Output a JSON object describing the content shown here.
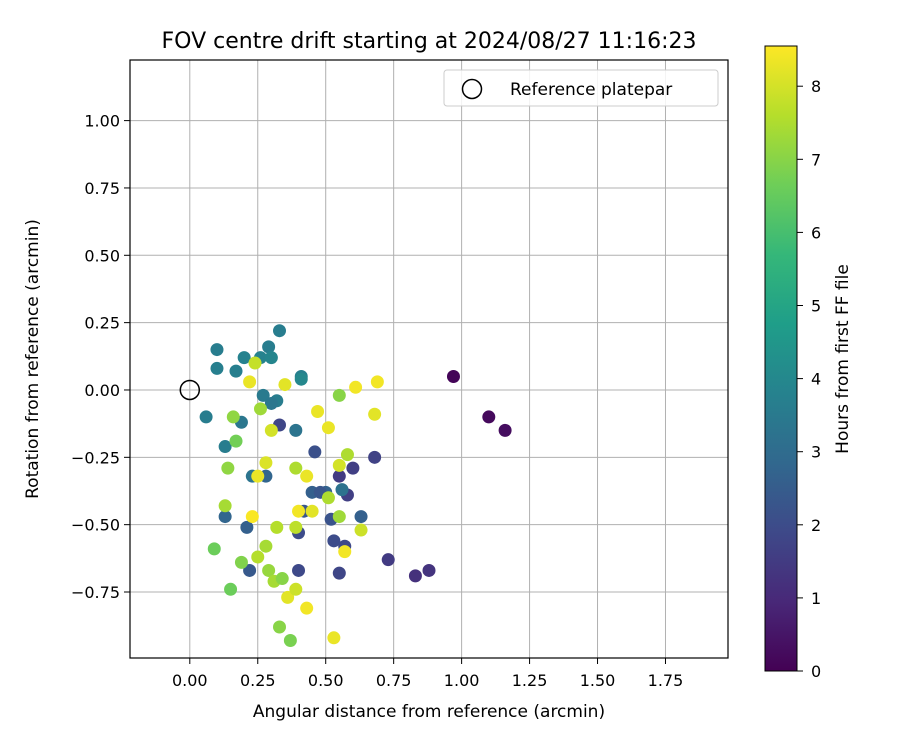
{
  "chart_data": {
    "type": "scatter",
    "title": "FOV centre drift starting at 2024/08/27 11:16:23",
    "xlabel": "Angular distance from reference (arcmin)",
    "ylabel": "Rotation from reference (arcmin)",
    "xlim": [
      -0.22,
      1.98
    ],
    "ylim": [
      -0.995,
      1.225
    ],
    "xticks": [
      0.0,
      0.25,
      0.5,
      0.75,
      1.0,
      1.25,
      1.5,
      1.75
    ],
    "xtick_labels": [
      "0.00",
      "0.25",
      "0.50",
      "0.75",
      "1.00",
      "1.25",
      "1.50",
      "1.75"
    ],
    "yticks": [
      -0.75,
      -0.5,
      -0.25,
      0.0,
      0.25,
      0.5,
      0.75,
      1.0
    ],
    "ytick_labels": [
      "−0.75",
      "−0.50",
      "−0.25",
      "0.00",
      "0.25",
      "0.50",
      "0.75",
      "1.00"
    ],
    "grid": true,
    "legend": {
      "position": "top-right",
      "entries": [
        "Reference platepar"
      ]
    },
    "reference_point": {
      "x": 0.0,
      "y": 0.0
    },
    "colorbar": {
      "label": "Hours from first FF file",
      "colormap": "viridis",
      "range": [
        0,
        8.55
      ],
      "ticks": [
        0,
        1,
        2,
        3,
        4,
        5,
        6,
        7,
        8
      ],
      "tick_labels": [
        "0",
        "1",
        "2",
        "3",
        "4",
        "5",
        "6",
        "7",
        "8"
      ],
      "colormap_stops": [
        "#440154",
        "#482878",
        "#3e4989",
        "#31688e",
        "#26828e",
        "#1f9e89",
        "#35b779",
        "#6ece58",
        "#b5de2b",
        "#fde725"
      ]
    },
    "points": [
      {
        "x": 0.97,
        "y": 0.05,
        "hours": 0.1
      },
      {
        "x": 1.1,
        "y": -0.1,
        "hours": 0.2
      },
      {
        "x": 1.16,
        "y": -0.15,
        "hours": 0.3
      },
      {
        "x": 0.88,
        "y": -0.67,
        "hours": 1.3
      },
      {
        "x": 0.83,
        "y": -0.69,
        "hours": 1.2
      },
      {
        "x": 0.73,
        "y": -0.63,
        "hours": 1.5
      },
      {
        "x": 0.68,
        "y": -0.25,
        "hours": 1.7
      },
      {
        "x": 0.6,
        "y": -0.29,
        "hours": 1.6
      },
      {
        "x": 0.58,
        "y": -0.39,
        "hours": 1.6
      },
      {
        "x": 0.55,
        "y": -0.32,
        "hours": 1.5
      },
      {
        "x": 0.55,
        "y": -0.68,
        "hours": 1.8
      },
      {
        "x": 0.57,
        "y": -0.58,
        "hours": 1.9
      },
      {
        "x": 0.53,
        "y": -0.56,
        "hours": 2.0
      },
      {
        "x": 0.52,
        "y": -0.48,
        "hours": 2.2
      },
      {
        "x": 0.4,
        "y": -0.67,
        "hours": 1.9
      },
      {
        "x": 0.4,
        "y": -0.53,
        "hours": 2.0
      },
      {
        "x": 0.42,
        "y": -0.45,
        "hours": 2.3
      },
      {
        "x": 0.46,
        "y": -0.23,
        "hours": 2.1
      },
      {
        "x": 0.45,
        "y": -0.38,
        "hours": 2.6
      },
      {
        "x": 0.5,
        "y": -0.38,
        "hours": 2.7
      },
      {
        "x": 0.48,
        "y": -0.38,
        "hours": 2.3
      },
      {
        "x": 0.56,
        "y": -0.37,
        "hours": 3.2
      },
      {
        "x": 0.63,
        "y": -0.47,
        "hours": 2.6
      },
      {
        "x": 0.33,
        "y": -0.13,
        "hours": 1.8
      },
      {
        "x": 0.22,
        "y": -0.67,
        "hours": 2.4
      },
      {
        "x": 0.21,
        "y": -0.51,
        "hours": 2.6
      },
      {
        "x": 0.13,
        "y": -0.47,
        "hours": 2.8
      },
      {
        "x": 0.23,
        "y": -0.32,
        "hours": 3.3
      },
      {
        "x": 0.28,
        "y": -0.32,
        "hours": 2.8
      },
      {
        "x": 0.13,
        "y": -0.21,
        "hours": 3.6
      },
      {
        "x": 0.19,
        "y": -0.12,
        "hours": 3.4
      },
      {
        "x": 0.06,
        "y": -0.1,
        "hours": 3.6
      },
      {
        "x": 0.27,
        "y": -0.02,
        "hours": 3.5
      },
      {
        "x": 0.32,
        "y": -0.04,
        "hours": 3.6
      },
      {
        "x": 0.3,
        "y": -0.05,
        "hours": 3.4
      },
      {
        "x": 0.39,
        "y": -0.15,
        "hours": 3.3
      },
      {
        "x": 0.41,
        "y": 0.05,
        "hours": 3.7
      },
      {
        "x": 0.41,
        "y": 0.04,
        "hours": 4.0
      },
      {
        "x": 0.1,
        "y": 0.08,
        "hours": 3.7
      },
      {
        "x": 0.17,
        "y": 0.07,
        "hours": 3.7
      },
      {
        "x": 0.2,
        "y": 0.12,
        "hours": 3.8
      },
      {
        "x": 0.1,
        "y": 0.15,
        "hours": 3.6
      },
      {
        "x": 0.26,
        "y": 0.12,
        "hours": 3.8
      },
      {
        "x": 0.29,
        "y": 0.16,
        "hours": 3.6
      },
      {
        "x": 0.3,
        "y": 0.12,
        "hours": 3.9
      },
      {
        "x": 0.33,
        "y": 0.22,
        "hours": 3.6
      },
      {
        "x": 0.24,
        "y": 0.1,
        "hours": 7.8
      },
      {
        "x": 0.26,
        "y": -0.07,
        "hours": 7.3
      },
      {
        "x": 0.16,
        "y": -0.1,
        "hours": 7.1
      },
      {
        "x": 0.17,
        "y": -0.19,
        "hours": 6.7
      },
      {
        "x": 0.14,
        "y": -0.29,
        "hours": 7.1
      },
      {
        "x": 0.09,
        "y": -0.59,
        "hours": 6.6
      },
      {
        "x": 0.13,
        "y": -0.43,
        "hours": 7.4
      },
      {
        "x": 0.15,
        "y": -0.74,
        "hours": 6.6
      },
      {
        "x": 0.19,
        "y": -0.64,
        "hours": 6.9
      },
      {
        "x": 0.25,
        "y": -0.62,
        "hours": 7.6
      },
      {
        "x": 0.28,
        "y": -0.58,
        "hours": 7.4
      },
      {
        "x": 0.29,
        "y": -0.67,
        "hours": 7.2
      },
      {
        "x": 0.31,
        "y": -0.71,
        "hours": 7.4
      },
      {
        "x": 0.34,
        "y": -0.7,
        "hours": 7.0
      },
      {
        "x": 0.33,
        "y": -0.88,
        "hours": 7.0
      },
      {
        "x": 0.37,
        "y": -0.93,
        "hours": 6.8
      },
      {
        "x": 0.36,
        "y": -0.77,
        "hours": 8.2
      },
      {
        "x": 0.39,
        "y": -0.74,
        "hours": 7.9
      },
      {
        "x": 0.43,
        "y": -0.81,
        "hours": 8.4
      },
      {
        "x": 0.53,
        "y": -0.92,
        "hours": 8.3
      },
      {
        "x": 0.32,
        "y": -0.51,
        "hours": 7.6
      },
      {
        "x": 0.39,
        "y": -0.51,
        "hours": 7.7
      },
      {
        "x": 0.4,
        "y": -0.45,
        "hours": 8.4
      },
      {
        "x": 0.45,
        "y": -0.45,
        "hours": 8.2
      },
      {
        "x": 0.43,
        "y": -0.32,
        "hours": 8.3
      },
      {
        "x": 0.39,
        "y": -0.29,
        "hours": 7.5
      },
      {
        "x": 0.51,
        "y": -0.4,
        "hours": 7.5
      },
      {
        "x": 0.55,
        "y": -0.47,
        "hours": 7.3
      },
      {
        "x": 0.63,
        "y": -0.52,
        "hours": 7.9
      },
      {
        "x": 0.57,
        "y": -0.6,
        "hours": 8.4
      },
      {
        "x": 0.55,
        "y": -0.28,
        "hours": 8.0
      },
      {
        "x": 0.58,
        "y": -0.24,
        "hours": 7.5
      },
      {
        "x": 0.51,
        "y": -0.14,
        "hours": 8.3
      },
      {
        "x": 0.47,
        "y": -0.08,
        "hours": 8.3
      },
      {
        "x": 0.55,
        "y": -0.02,
        "hours": 7.0
      },
      {
        "x": 0.61,
        "y": 0.01,
        "hours": 8.4
      },
      {
        "x": 0.69,
        "y": 0.03,
        "hours": 8.4
      },
      {
        "x": 0.68,
        "y": -0.09,
        "hours": 8.2
      },
      {
        "x": 0.35,
        "y": 0.02,
        "hours": 8.2
      },
      {
        "x": 0.22,
        "y": 0.03,
        "hours": 8.3
      },
      {
        "x": 0.3,
        "y": -0.15,
        "hours": 8.0
      },
      {
        "x": 0.28,
        "y": -0.27,
        "hours": 8.1
      },
      {
        "x": 0.25,
        "y": -0.32,
        "hours": 8.3
      },
      {
        "x": 0.23,
        "y": -0.47,
        "hours": 8.5
      }
    ]
  }
}
